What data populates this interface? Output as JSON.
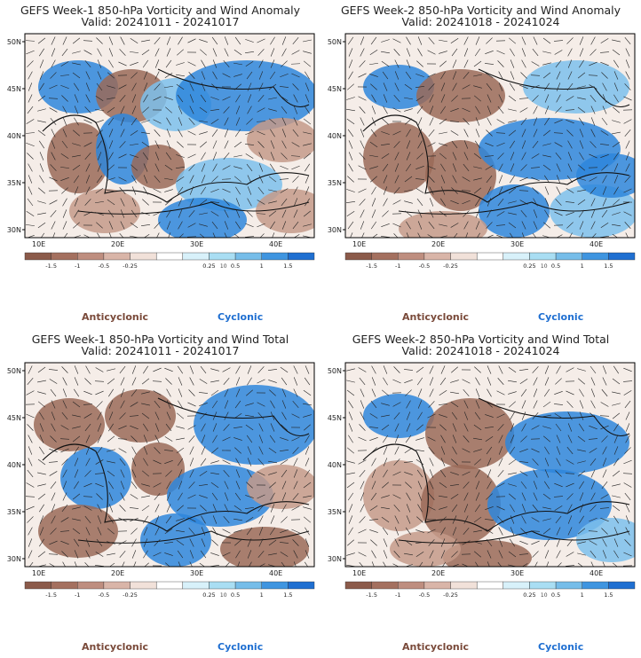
{
  "panels": [
    {
      "title": "GEFS Week-1 850-hPa Vorticity and Wind Anomaly",
      "valid": "Valid: 20241011 - 20241017"
    },
    {
      "title": "GEFS Week-2 850-hPa Vorticity and Wind Anomaly",
      "valid": "Valid: 20241018 - 20241024"
    },
    {
      "title": "GEFS Week-1 850-hPa Vorticity and Wind Total",
      "valid": "Valid: 20241011 - 20241017"
    },
    {
      "title": "GEFS Week-2 850-hPa Vorticity and Wind Total",
      "valid": "Valid: 20241018 - 20241024"
    }
  ],
  "lat_labels": [
    "50N",
    "45N",
    "40N",
    "35N",
    "30N"
  ],
  "lon_labels": [
    "10E",
    "20E",
    "30E",
    "40E"
  ],
  "colorbar": {
    "labels": [
      "-1.5",
      "-1",
      "-0.5",
      "-0.25",
      "0.25",
      "0.5",
      "1",
      "1.5"
    ],
    "scale_note": "10",
    "colors": [
      "#8b5a4a",
      "#a4705f",
      "#be8e7f",
      "#d9b5a8",
      "#f1e1d9",
      "#ffffff",
      "#d8f1fa",
      "#a9def3",
      "#76bde9",
      "#3f95e0",
      "#1f6fd1"
    ]
  },
  "legend": {
    "anticyclonic": "Anticyclonic",
    "cyclonic": "Cyclonic"
  },
  "colors": {
    "anticyclonic": "#8b5a4a",
    "cyclonic": "#1f6fd1",
    "land_border": "#111111"
  }
}
